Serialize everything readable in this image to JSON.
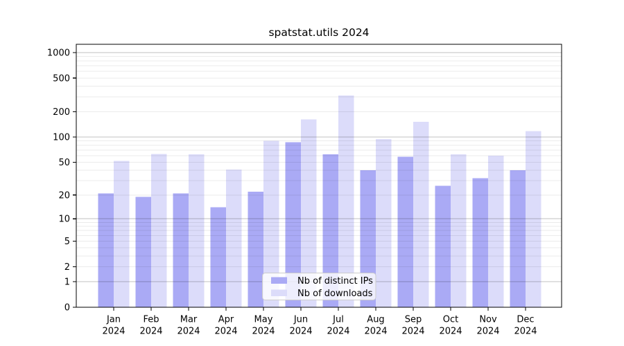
{
  "chart_data": {
    "type": "bar",
    "title": "spatstat.utils 2024",
    "categories": [
      "Jan",
      "Feb",
      "Mar",
      "Apr",
      "May",
      "Jun",
      "Jul",
      "Aug",
      "Sep",
      "Oct",
      "Nov",
      "Dec"
    ],
    "category_year": "2024",
    "series": [
      {
        "name": "Nb of distinct IPs",
        "color": "#aaaaf5",
        "values": [
          21,
          19,
          21,
          14,
          22,
          87,
          62,
          40,
          58,
          26,
          32,
          40
        ]
      },
      {
        "name": "Nb of downloads",
        "color": "#dcdcfa",
        "values": [
          52,
          63,
          62,
          41,
          90,
          163,
          310,
          95,
          152,
          62,
          60,
          118
        ]
      }
    ],
    "xlabel": "",
    "ylabel": "",
    "y_scale": "log1p",
    "ylim": [
      0,
      1250
    ],
    "y_ticks": [
      0,
      1,
      2,
      5,
      10,
      20,
      50,
      100,
      200,
      500,
      1000
    ],
    "y_major_gridlines": [
      1,
      10,
      100,
      1000
    ],
    "y_minor_gridlines": [
      2,
      3,
      4,
      5,
      6,
      7,
      8,
      9,
      20,
      30,
      40,
      50,
      60,
      70,
      80,
      90,
      200,
      300,
      400,
      500,
      600,
      700,
      800,
      900
    ],
    "grid": true,
    "legend_position": "lower center"
  },
  "colors": {
    "background": "#ffffff",
    "axis": "#000000",
    "major_grid": "rgba(0,0,0,0.24)",
    "minor_grid": "rgba(0,0,0,0.08)",
    "legend_background": "rgba(255,255,255,0.8)",
    "legend_border": "#cccccc"
  }
}
